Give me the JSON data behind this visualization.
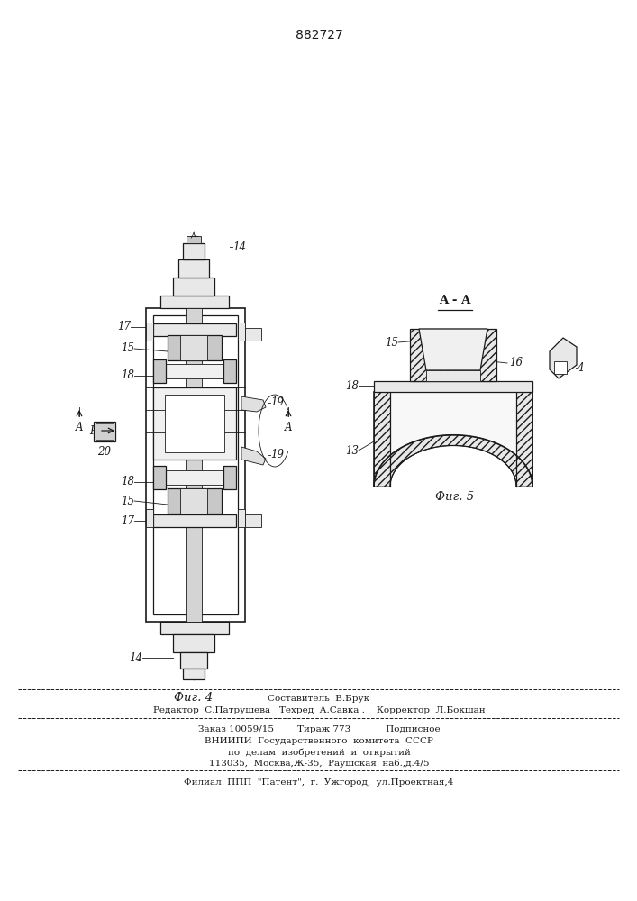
{
  "title": "882727",
  "bg_color": "#ffffff",
  "fig4_label": "Фиг. 4",
  "fig5_label": "Фиг. 5",
  "section_label": "A - A",
  "footer_lines": [
    "Составитель  В.Брук",
    "Редактор  С.Патрушева   Техред  А.Савка .    Корректор  Л.Бокшан",
    "Заказ 10059/15        Тираж 773            Подписное",
    "ВНИИПИ  Государственного  комитета  СССР",
    "по  делам  изобретений  и  открытий",
    "113035,  Москва,Ж-35,  Раушская  наб.,д.4/5",
    "Филиал  ППП  \"Патент\",  г.  Ужгород,  ул.Проектная,4"
  ],
  "line_color": "#1a1a1a",
  "gray_light": "#e8e8e8",
  "gray_mid": "#c8c8c8",
  "gray_dark": "#a0a0a0",
  "hatch_color": "#555555",
  "white": "#ffffff"
}
